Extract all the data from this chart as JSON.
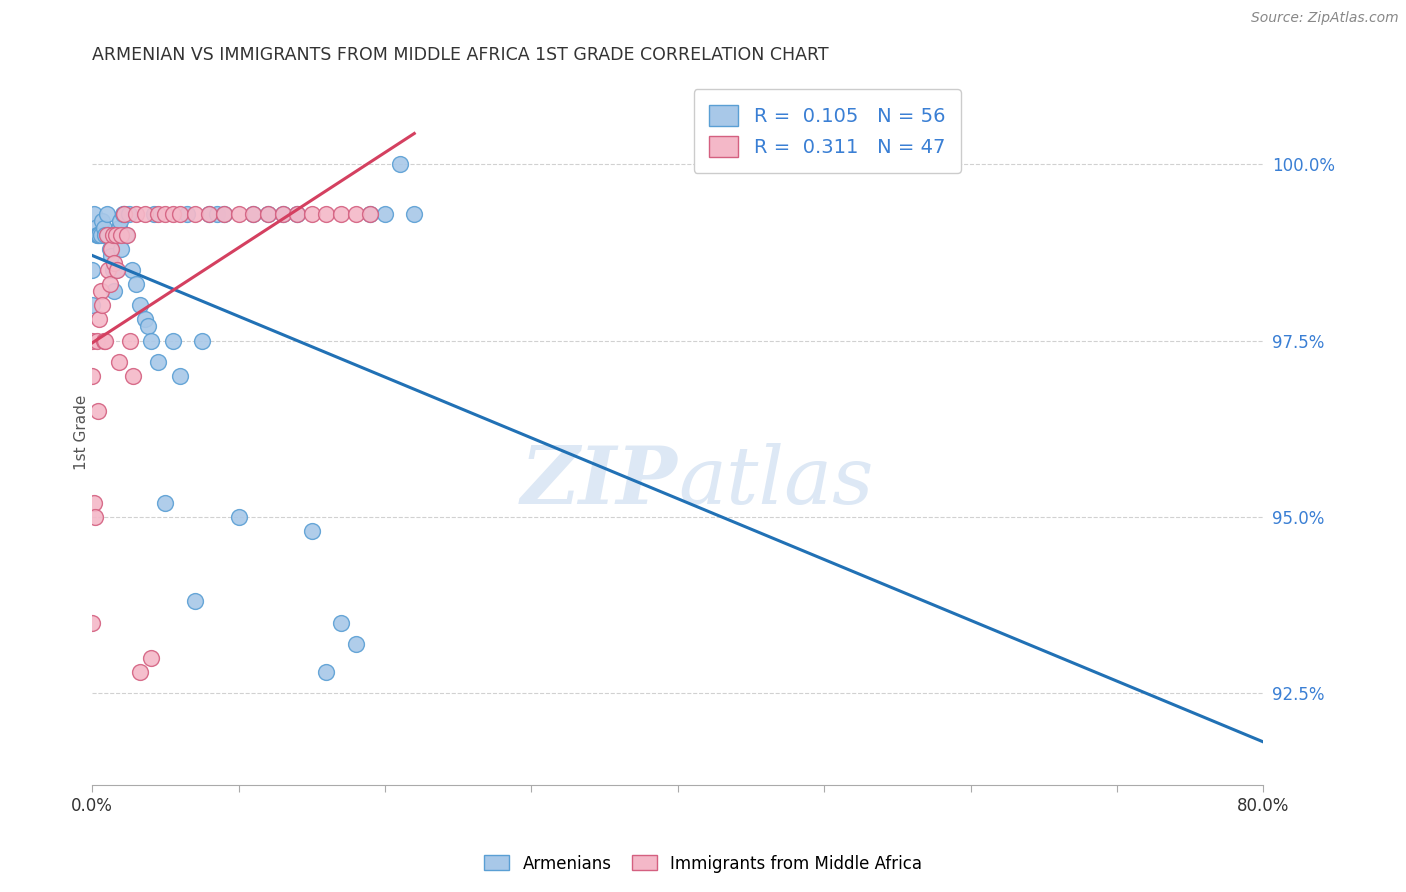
{
  "title": "ARMENIAN VS IMMIGRANTS FROM MIDDLE AFRICA 1ST GRADE CORRELATION CHART",
  "source": "Source: ZipAtlas.com",
  "ylabel": "1st Grade",
  "yticks": [
    92.5,
    95.0,
    97.5,
    100.0
  ],
  "ytick_labels": [
    "92.5%",
    "95.0%",
    "97.5%",
    "100.0%"
  ],
  "legend_armenians": "Armenians",
  "legend_immigrants": "Immigrants from Middle Africa",
  "R_armenians": 0.105,
  "N_armenians": 56,
  "R_immigrants": 0.311,
  "N_immigrants": 47,
  "armenian_color": "#a8c8e8",
  "armenian_edge": "#5a9fd4",
  "immigrant_color": "#f4b8c8",
  "immigrant_edge": "#d46080",
  "trendline_armenian_color": "#2171b5",
  "trendline_immigrant_color": "#d44060",
  "watermark_color": "#dde8f5",
  "background_color": "#ffffff",
  "grid_color": "#cccccc",
  "title_color": "#333333",
  "right_tick_color": "#3a7fd4",
  "xmin": 0.0,
  "xmax": 80.0,
  "ymin": 91.2,
  "ymax": 101.2,
  "armenians_x": [
    0.0,
    0.0,
    0.1,
    0.2,
    0.3,
    0.4,
    0.5,
    0.6,
    0.7,
    0.8,
    0.9,
    1.0,
    1.1,
    1.2,
    1.3,
    1.4,
    1.5,
    1.6,
    1.7,
    1.8,
    1.9,
    2.0,
    2.1,
    2.2,
    2.3,
    2.5,
    2.7,
    3.0,
    3.3,
    3.6,
    3.8,
    4.0,
    4.2,
    4.5,
    5.0,
    5.5,
    6.0,
    6.5,
    7.0,
    7.5,
    8.0,
    8.5,
    9.0,
    10.0,
    11.0,
    12.0,
    13.0,
    14.0,
    15.0,
    16.0,
    17.0,
    18.0,
    19.0,
    20.0,
    21.0,
    22.0
  ],
  "armenians_y": [
    98.5,
    98.0,
    99.3,
    99.1,
    99.0,
    99.0,
    99.0,
    99.0,
    99.2,
    99.1,
    99.0,
    99.3,
    99.0,
    98.8,
    98.7,
    98.5,
    98.2,
    98.5,
    99.0,
    99.1,
    99.2,
    98.8,
    99.3,
    99.3,
    99.0,
    99.3,
    98.5,
    98.3,
    98.0,
    97.8,
    97.7,
    97.5,
    99.3,
    97.2,
    95.2,
    97.5,
    97.0,
    99.3,
    93.8,
    97.5,
    99.3,
    99.3,
    99.3,
    95.0,
    99.3,
    99.3,
    99.3,
    99.3,
    94.8,
    92.8,
    93.5,
    93.2,
    99.3,
    99.3,
    100.0,
    99.3
  ],
  "immigrants_x": [
    0.0,
    0.0,
    0.0,
    0.1,
    0.2,
    0.3,
    0.4,
    0.5,
    0.6,
    0.7,
    0.8,
    0.9,
    1.0,
    1.1,
    1.2,
    1.3,
    1.4,
    1.5,
    1.6,
    1.7,
    1.8,
    2.0,
    2.2,
    2.4,
    2.6,
    2.8,
    3.0,
    3.3,
    3.6,
    4.0,
    4.5,
    5.0,
    5.5,
    6.0,
    7.0,
    8.0,
    9.0,
    10.0,
    11.0,
    12.0,
    13.0,
    14.0,
    15.0,
    16.0,
    17.0,
    18.0,
    19.0
  ],
  "immigrants_y": [
    97.5,
    97.0,
    93.5,
    95.2,
    95.0,
    97.5,
    96.5,
    97.8,
    98.2,
    98.0,
    97.5,
    97.5,
    99.0,
    98.5,
    98.3,
    98.8,
    99.0,
    98.6,
    99.0,
    98.5,
    97.2,
    99.0,
    99.3,
    99.0,
    97.5,
    97.0,
    99.3,
    92.8,
    99.3,
    93.0,
    99.3,
    99.3,
    99.3,
    99.3,
    99.3,
    99.3,
    99.3,
    99.3,
    99.3,
    99.3,
    99.3,
    99.3,
    99.3,
    99.3,
    99.3,
    99.3,
    99.3
  ]
}
